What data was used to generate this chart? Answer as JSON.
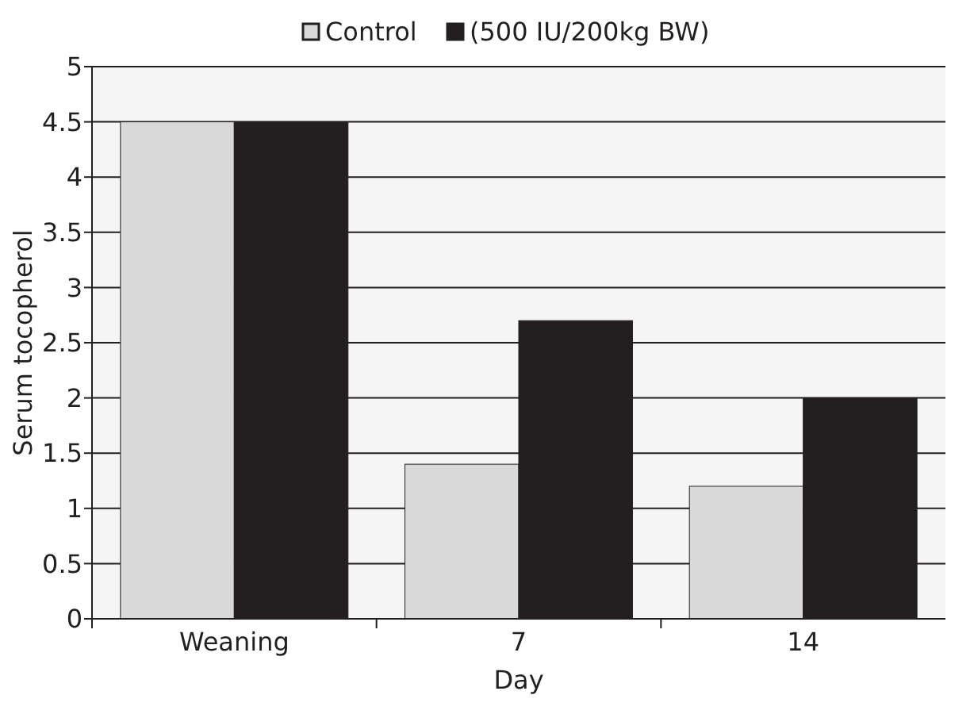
{
  "chart_data": {
    "type": "bar",
    "xlabel": "Day",
    "ylabel": "Serum tocopherol",
    "categories": [
      "Weaning",
      "7",
      "14"
    ],
    "series": [
      {
        "name": "Control",
        "color": "#d9d9d9",
        "values": [
          4.5,
          1.4,
          1.2
        ]
      },
      {
        "name": "(500 IU/200kg BW)",
        "color": "#231f20",
        "values": [
          4.5,
          2.7,
          2.0
        ]
      }
    ],
    "ylim": [
      0,
      5
    ],
    "yticks": [
      0,
      0.5,
      1,
      1.5,
      2,
      2.5,
      3,
      3.5,
      4,
      4.5,
      5
    ],
    "grid": "y",
    "legend": "top"
  }
}
